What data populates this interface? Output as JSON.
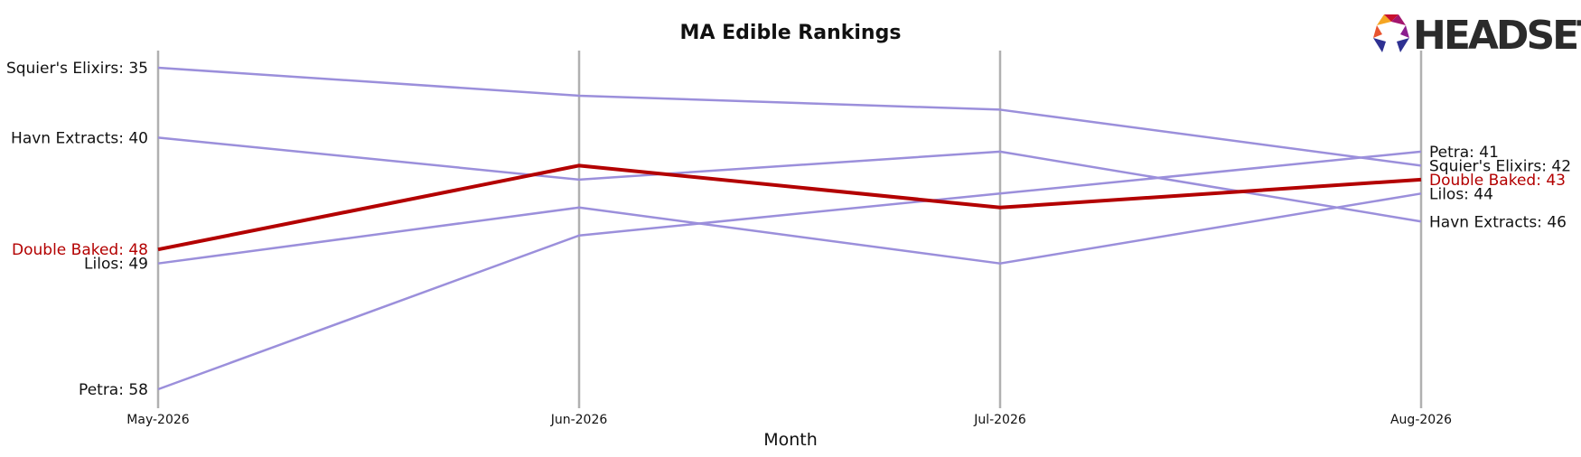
{
  "brand": {
    "logo_text": "HEADSET"
  },
  "chart_data": {
    "type": "line",
    "title": "MA Edible Rankings",
    "xlabel": "Month",
    "ylabel": "",
    "x": [
      "May-2026",
      "Jun-2026",
      "Jul-2026",
      "Aug-2026"
    ],
    "y_inverted": true,
    "ylim": [
      58,
      35
    ],
    "grid": "vertical lines at each month",
    "series": [
      {
        "name": "Squier's Elixirs",
        "values": [
          35,
          37,
          38,
          42
        ],
        "color": "#9b8fdb",
        "highlight": false
      },
      {
        "name": "Havn Extracts",
        "values": [
          40,
          43,
          41,
          46
        ],
        "color": "#9b8fdb",
        "highlight": false
      },
      {
        "name": "Lilos",
        "values": [
          49,
          45,
          49,
          44
        ],
        "color": "#9b8fdb",
        "highlight": false
      },
      {
        "name": "Petra",
        "values": [
          58,
          47,
          44,
          41
        ],
        "color": "#9b8fdb",
        "highlight": false
      },
      {
        "name": "Double Baked",
        "values": [
          48,
          42,
          45,
          43
        ],
        "color": "#b30000",
        "highlight": true
      }
    ],
    "start_labels": [
      {
        "text": "Squier's Elixirs: 35",
        "series": "Squier's Elixirs"
      },
      {
        "text": "Havn Extracts: 40",
        "series": "Havn Extracts"
      },
      {
        "text": "Double Baked: 48",
        "series": "Double Baked"
      },
      {
        "text": "Lilos: 49",
        "series": "Lilos"
      },
      {
        "text": "Petra: 58",
        "series": "Petra"
      }
    ],
    "end_labels": [
      {
        "text": "Petra: 41",
        "series": "Petra"
      },
      {
        "text": "Squier's Elixirs: 42",
        "series": "Squier's Elixirs"
      },
      {
        "text": "Double Baked: 43",
        "series": "Double Baked"
      },
      {
        "text": "Lilos: 44",
        "series": "Lilos"
      },
      {
        "text": "Havn Extracts: 46",
        "series": "Havn Extracts"
      }
    ],
    "colors": {
      "default_line": "#9b8fdb",
      "highlight_line": "#b30000",
      "gridline": "#b0b0b0"
    }
  }
}
